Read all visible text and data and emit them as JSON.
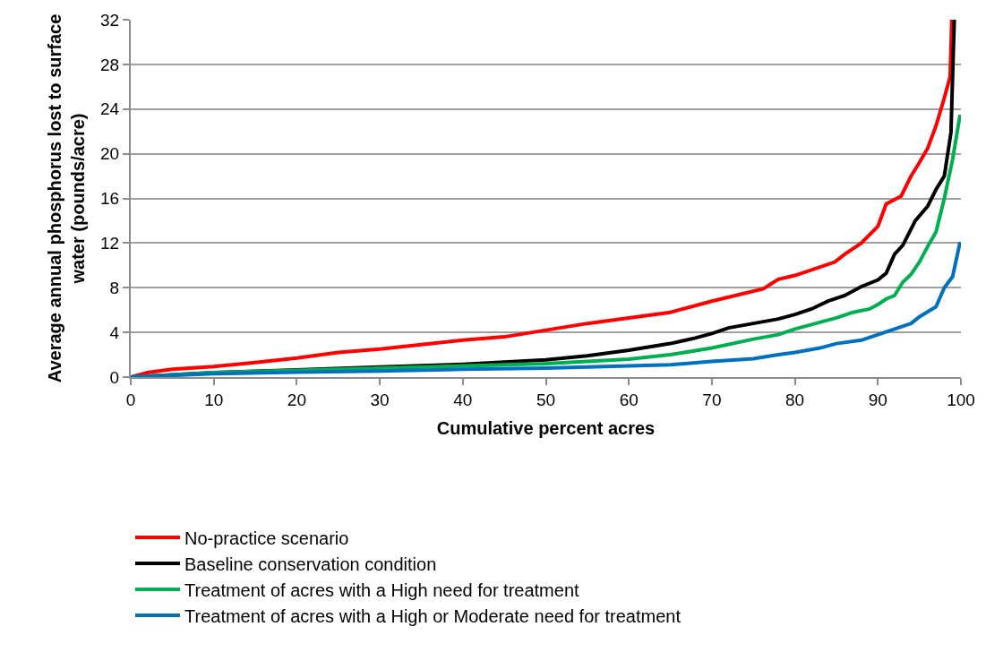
{
  "chart_data": {
    "type": "line",
    "xlabel": "Cumulative percent acres",
    "ylabel": "Average annual phosphorus lost to surface water (pounds/acre)",
    "xlim": [
      0,
      100
    ],
    "ylim": [
      0,
      32
    ],
    "xticks": [
      0,
      10,
      20,
      30,
      40,
      50,
      60,
      70,
      80,
      90,
      100
    ],
    "yticks": [
      0,
      4,
      8,
      12,
      16,
      20,
      24,
      28,
      32
    ],
    "grid": "y",
    "legend": "bottom",
    "marker": "none",
    "line_style": "solid",
    "series": [
      {
        "name": "No-practice scenario",
        "color": "#ff0000",
        "x": [
          0,
          2,
          5,
          10,
          15,
          20,
          25,
          30,
          35,
          40,
          45,
          50,
          55,
          60,
          65,
          70,
          76.2,
          78,
          80,
          82,
          84.8,
          86,
          88,
          90,
          91,
          92.8,
          94,
          95,
          96,
          97,
          98,
          98.7,
          98.9
        ],
        "values": [
          0,
          0.4,
          0.7,
          0.95,
          1.3,
          1.7,
          2.2,
          2.5,
          2.9,
          3.3,
          3.6,
          4.2,
          4.8,
          5.3,
          5.8,
          6.8,
          7.9,
          8.75,
          9.1,
          9.6,
          10.3,
          11,
          12,
          13.5,
          15.5,
          16.2,
          18,
          19.2,
          20.5,
          22.5,
          25,
          26.9,
          32
        ]
      },
      {
        "name": "Baseline conservation condition",
        "color": "#000000",
        "x": [
          0,
          10,
          20,
          30,
          40,
          50,
          55,
          60,
          65,
          68,
          70,
          72,
          75,
          78,
          80,
          82,
          84,
          86,
          88,
          90,
          91,
          92,
          93,
          94.5,
          96,
          97,
          98,
          98.8,
          99.2
        ],
        "values": [
          0,
          0.4,
          0.65,
          0.9,
          1.15,
          1.55,
          1.9,
          2.4,
          3.0,
          3.5,
          3.9,
          4.4,
          4.8,
          5.2,
          5.6,
          6.1,
          6.8,
          7.3,
          8.1,
          8.7,
          9.3,
          11,
          11.8,
          14,
          15.3,
          16.8,
          18,
          21.9,
          32
        ]
      },
      {
        "name": "Treatment of acres with a High need for treatment",
        "color": "#00b050",
        "x": [
          0,
          10,
          20,
          30,
          40,
          50,
          60,
          65,
          70,
          75,
          78,
          80,
          82,
          85,
          87,
          89,
          90,
          91,
          92,
          93,
          94,
          95,
          96,
          97,
          98,
          99,
          99.9
        ],
        "values": [
          0,
          0.4,
          0.6,
          0.8,
          1.0,
          1.2,
          1.6,
          2.0,
          2.6,
          3.4,
          3.8,
          4.3,
          4.7,
          5.3,
          5.8,
          6.1,
          6.5,
          7.0,
          7.3,
          8.5,
          9.2,
          10.3,
          11.7,
          13,
          16,
          19.5,
          23.5
        ]
      },
      {
        "name": "Treatment of acres with a High or Moderate need for treatment",
        "color": "#0070c0",
        "x": [
          0,
          10,
          20,
          30,
          40,
          50,
          60,
          65,
          70,
          75,
          78,
          80,
          83,
          85,
          88,
          90,
          92,
          94,
          95,
          97,
          98,
          99,
          99.9
        ],
        "values": [
          0,
          0.3,
          0.45,
          0.55,
          0.7,
          0.8,
          1.0,
          1.1,
          1.4,
          1.65,
          2.0,
          2.2,
          2.6,
          3.0,
          3.3,
          3.8,
          4.3,
          4.8,
          5.4,
          6.3,
          8.0,
          9.0,
          12.1
        ]
      }
    ]
  }
}
